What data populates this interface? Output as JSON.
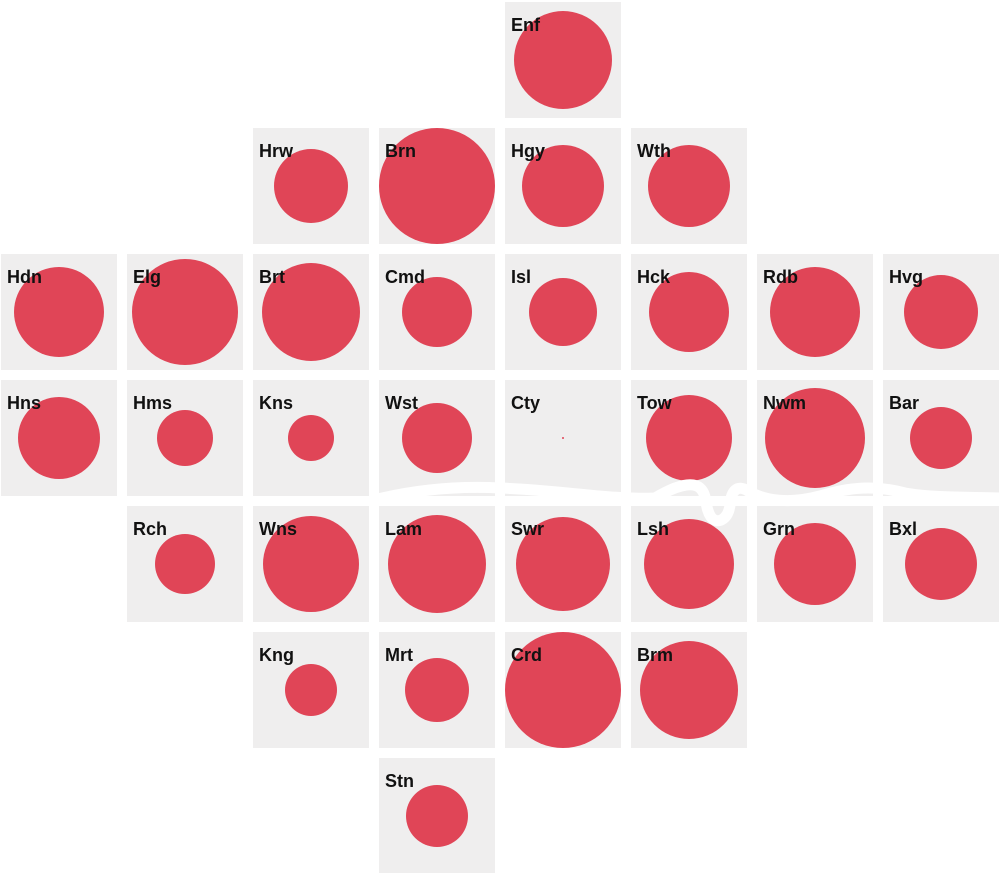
{
  "colors": {
    "background": "#ffffff",
    "tile": "#efeeee",
    "bubble": "#e04557",
    "label": "#111111",
    "river": "#ffffff"
  },
  "chart_data": {
    "type": "scatter",
    "title": "",
    "layout": "hex-grid tile map of London boroughs",
    "size_encoding": "circle radius",
    "grid": false,
    "legend": "none",
    "tiles": [
      {
        "label": "Enf",
        "col": 4,
        "row": 0,
        "value": 49
      },
      {
        "label": "Hrw",
        "col": 2,
        "row": 1,
        "value": 37
      },
      {
        "label": "Brn",
        "col": 3,
        "row": 1,
        "value": 58
      },
      {
        "label": "Hgy",
        "col": 4,
        "row": 1,
        "value": 41
      },
      {
        "label": "Wth",
        "col": 5,
        "row": 1,
        "value": 41
      },
      {
        "label": "Hdn",
        "col": 0,
        "row": 2,
        "value": 45
      },
      {
        "label": "Elg",
        "col": 1,
        "row": 2,
        "value": 53
      },
      {
        "label": "Brt",
        "col": 2,
        "row": 2,
        "value": 49
      },
      {
        "label": "Cmd",
        "col": 3,
        "row": 2,
        "value": 35
      },
      {
        "label": "Isl",
        "col": 4,
        "row": 2,
        "value": 34
      },
      {
        "label": "Hck",
        "col": 5,
        "row": 2,
        "value": 40
      },
      {
        "label": "Rdb",
        "col": 6,
        "row": 2,
        "value": 45
      },
      {
        "label": "Hvg",
        "col": 7,
        "row": 2,
        "value": 37
      },
      {
        "label": "Hns",
        "col": 0,
        "row": 3,
        "value": 41
      },
      {
        "label": "Hms",
        "col": 1,
        "row": 3,
        "value": 28
      },
      {
        "label": "Kns",
        "col": 2,
        "row": 3,
        "value": 23
      },
      {
        "label": "Wst",
        "col": 3,
        "row": 3,
        "value": 35
      },
      {
        "label": "Cty",
        "col": 4,
        "row": 3,
        "value": 1
      },
      {
        "label": "Tow",
        "col": 5,
        "row": 3,
        "value": 43
      },
      {
        "label": "Nwm",
        "col": 6,
        "row": 3,
        "value": 50
      },
      {
        "label": "Bar",
        "col": 7,
        "row": 3,
        "value": 31
      },
      {
        "label": "Rch",
        "col": 1,
        "row": 4,
        "value": 30
      },
      {
        "label": "Wns",
        "col": 2,
        "row": 4,
        "value": 48
      },
      {
        "label": "Lam",
        "col": 3,
        "row": 4,
        "value": 49
      },
      {
        "label": "Swr",
        "col": 4,
        "row": 4,
        "value": 47
      },
      {
        "label": "Lsh",
        "col": 5,
        "row": 4,
        "value": 45
      },
      {
        "label": "Grn",
        "col": 6,
        "row": 4,
        "value": 41
      },
      {
        "label": "Bxl",
        "col": 7,
        "row": 4,
        "value": 36
      },
      {
        "label": "Kng",
        "col": 2,
        "row": 5,
        "value": 26
      },
      {
        "label": "Mrt",
        "col": 3,
        "row": 5,
        "value": 32
      },
      {
        "label": "Crd",
        "col": 4,
        "row": 5,
        "value": 58
      },
      {
        "label": "Brm",
        "col": 5,
        "row": 5,
        "value": 49
      },
      {
        "label": "Stn",
        "col": 3,
        "row": 6,
        "value": 31
      }
    ]
  }
}
